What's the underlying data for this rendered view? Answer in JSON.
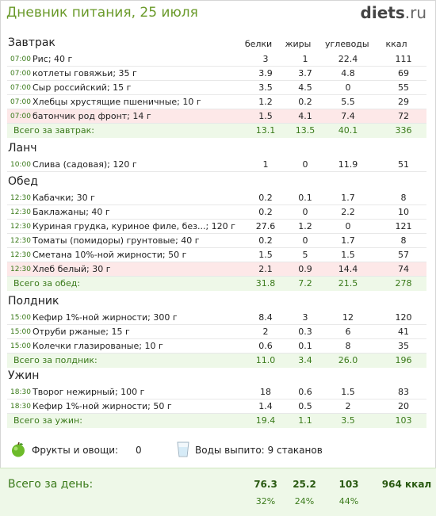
{
  "header": {
    "title": "Дневник питания, 25 июля",
    "logo_main": "diets",
    "logo_tld": ".ru"
  },
  "columns": {
    "protein": "белки",
    "fat": "жиры",
    "carbs": "углеводы",
    "kcal": "ккал"
  },
  "meals": [
    {
      "name": "Завтрак",
      "items": [
        {
          "time": "07:00",
          "name": "Рис; 40 г",
          "p": "3",
          "f": "1",
          "c": "22.4",
          "k": "111"
        },
        {
          "time": "07:00",
          "name": "котлеты говяжьи; 35 г",
          "p": "3.9",
          "f": "3.7",
          "c": "4.8",
          "k": "69"
        },
        {
          "time": "07:00",
          "name": "Сыр российский; 15 г",
          "p": "3.5",
          "f": "4.5",
          "c": "0",
          "k": "55"
        },
        {
          "time": "07:00",
          "name": "Хлебцы хрустящие пшеничные; 10 г",
          "p": "1.2",
          "f": "0.2",
          "c": "5.5",
          "k": "29"
        },
        {
          "time": "07:00",
          "name": "батончик  род фронт; 14 г",
          "p": "1.5",
          "f": "4.1",
          "c": "7.4",
          "k": "72",
          "highlight": true
        }
      ],
      "total": {
        "label": "Всего за завтрак:",
        "p": "13.1",
        "f": "13.5",
        "c": "40.1",
        "k": "336"
      }
    },
    {
      "name": "Ланч",
      "items": [
        {
          "time": "10:00",
          "name": "Слива (садовая); 120 г",
          "p": "1",
          "f": "0",
          "c": "11.9",
          "k": "51"
        }
      ]
    },
    {
      "name": "Обед",
      "items": [
        {
          "time": "12:30",
          "name": "Кабачки; 30 г",
          "p": "0.2",
          "f": "0.1",
          "c": "1.7",
          "k": "8"
        },
        {
          "time": "12:30",
          "name": "Баклажаны; 40 г",
          "p": "0.2",
          "f": "0",
          "c": "2.2",
          "k": "10"
        },
        {
          "time": "12:30",
          "name": "Куриная грудка, куриное филе, без...; 120 г",
          "p": "27.6",
          "f": "1.2",
          "c": "0",
          "k": "121"
        },
        {
          "time": "12:30",
          "name": "Томаты (помидоры) грунтовые; 40 г",
          "p": "0.2",
          "f": "0",
          "c": "1.7",
          "k": "8"
        },
        {
          "time": "12:30",
          "name": "Сметана 10%-ной жирности; 50 г",
          "p": "1.5",
          "f": "5",
          "c": "1.5",
          "k": "57"
        },
        {
          "time": "12:30",
          "name": "Хлеб белый; 30 г",
          "p": "2.1",
          "f": "0.9",
          "c": "14.4",
          "k": "74",
          "highlight": true
        }
      ],
      "total": {
        "label": "Всего за обед:",
        "p": "31.8",
        "f": "7.2",
        "c": "21.5",
        "k": "278"
      }
    },
    {
      "name": "Полдник",
      "items": [
        {
          "time": "15:00",
          "name": "Кефир 1%-ной жирности; 300 г",
          "p": "8.4",
          "f": "3",
          "c": "12",
          "k": "120"
        },
        {
          "time": "15:00",
          "name": "Отруби ржаные; 15 г",
          "p": "2",
          "f": "0.3",
          "c": "6",
          "k": "41"
        },
        {
          "time": "15:00",
          "name": "Колечки глазированые; 10 г",
          "p": "0.6",
          "f": "0.1",
          "c": "8",
          "k": "35"
        }
      ],
      "total": {
        "label": "Всего за полдник:",
        "p": "11.0",
        "f": "3.4",
        "c": "26.0",
        "k": "196"
      }
    },
    {
      "name": "Ужин",
      "items": [
        {
          "time": "18:30",
          "name": "Творог нежирный; 100 г",
          "p": "18",
          "f": "0.6",
          "c": "1.5",
          "k": "83"
        },
        {
          "time": "18:30",
          "name": "Кефир 1%-ной жирности; 50 г",
          "p": "1.4",
          "f": "0.5",
          "c": "2",
          "k": "20"
        }
      ],
      "total": {
        "label": "Всего за ужин:",
        "p": "19.4",
        "f": "1.1",
        "c": "3.5",
        "k": "103"
      }
    }
  ],
  "extras": {
    "fruit_label": "Фрукты и овощи:",
    "fruit_value": "0",
    "water_label": "Воды выпито: 9 стаканов"
  },
  "day_total": {
    "label": "Всего за день:",
    "p": "76.3",
    "f": "25.2",
    "c": "103",
    "k": "964 ккал",
    "p_pct": "32%",
    "f_pct": "24%",
    "c_pct": "44%"
  },
  "colors": {
    "accent_green": "#3a7a1a",
    "highlight_row": "#fde8e8",
    "total_row": "#eef8e8"
  }
}
